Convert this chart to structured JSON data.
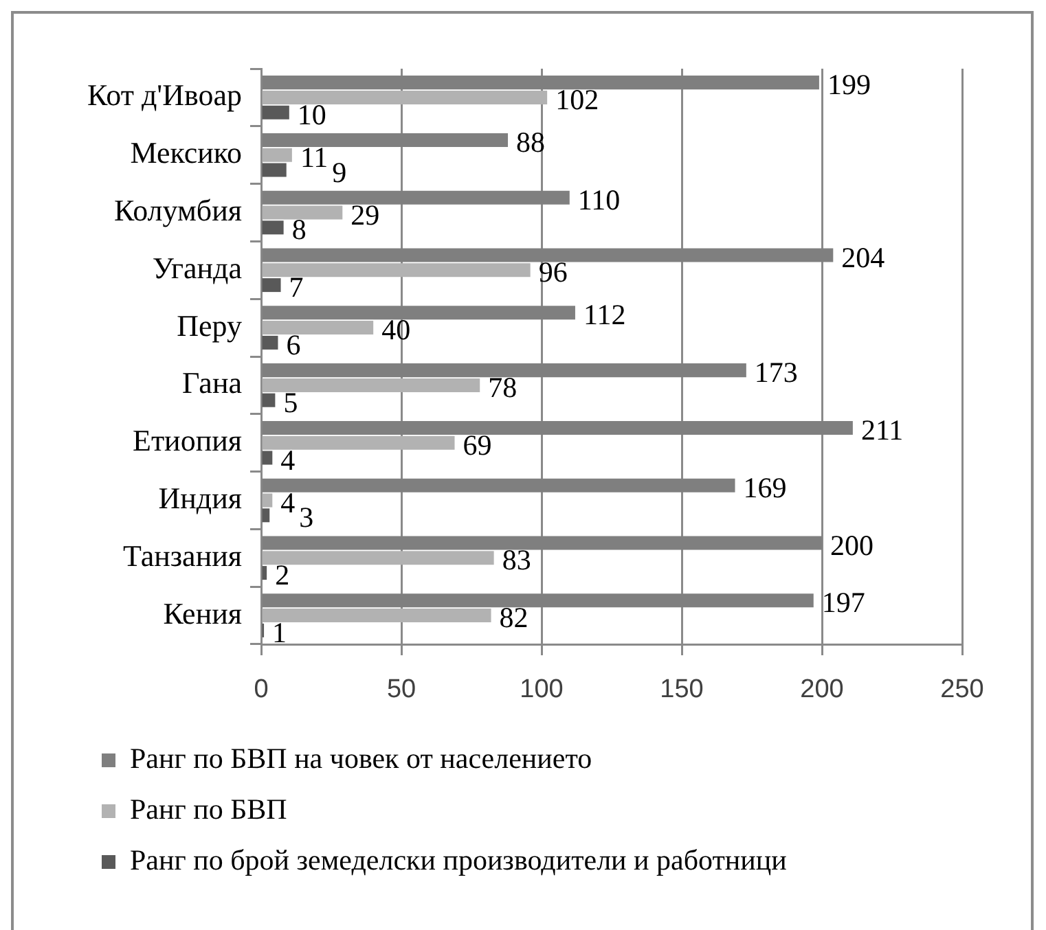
{
  "chart_data": {
    "type": "bar",
    "orientation": "horizontal",
    "categories": [
      "Кот д'Ивоар",
      "Мексико",
      "Колумбия",
      "Уганда",
      "Перу",
      "Гана",
      "Етиопия",
      "Индия",
      "Танзания",
      "Кения"
    ],
    "series": [
      {
        "name": "Ранг по БВП на човек от населението",
        "color": "#7f7f7f",
        "values": [
          199,
          88,
          110,
          204,
          112,
          173,
          211,
          169,
          200,
          197
        ]
      },
      {
        "name": "Ранг по БВП",
        "color": "#b2b2b2",
        "values": [
          102,
          11,
          29,
          96,
          40,
          78,
          69,
          4,
          83,
          82
        ]
      },
      {
        "name": "Ранг по брой земеделски производители и работници",
        "color": "#595959",
        "values": [
          10,
          9,
          8,
          7,
          6,
          5,
          4,
          3,
          2,
          1
        ]
      }
    ],
    "xlim": [
      0,
      250
    ],
    "xticks": [
      0,
      50,
      100,
      150,
      200,
      250
    ],
    "grid": "x",
    "legend": "bottom",
    "data_labels": true
  }
}
